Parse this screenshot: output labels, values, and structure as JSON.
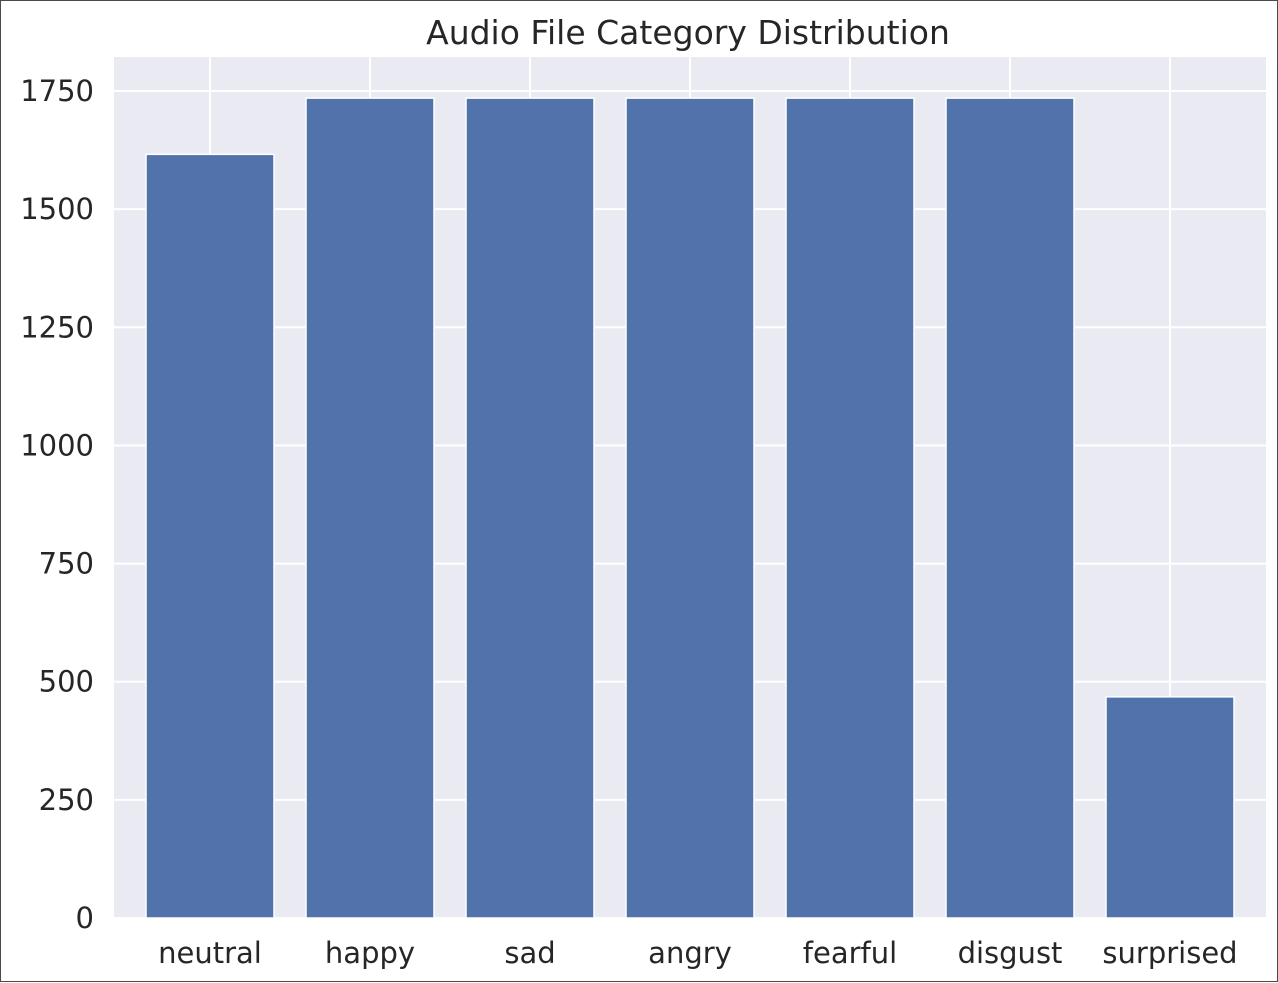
{
  "chart_data": {
    "type": "bar",
    "title": "Audio File Category Distribution",
    "xlabel": "",
    "ylabel": "",
    "categories": [
      "neutral",
      "happy",
      "sad",
      "angry",
      "fearful",
      "disgust",
      "surprised"
    ],
    "values": [
      1616,
      1735,
      1735,
      1735,
      1735,
      1735,
      468
    ],
    "ylim": [
      0,
      1822
    ],
    "yticks": [
      "0",
      "250",
      "500",
      "750",
      "1000",
      "1250",
      "1500",
      "1750"
    ],
    "grid": true,
    "bar_color": "#5172aa",
    "plot_background": "#eaeaf2",
    "grid_color": "#ffffff"
  }
}
